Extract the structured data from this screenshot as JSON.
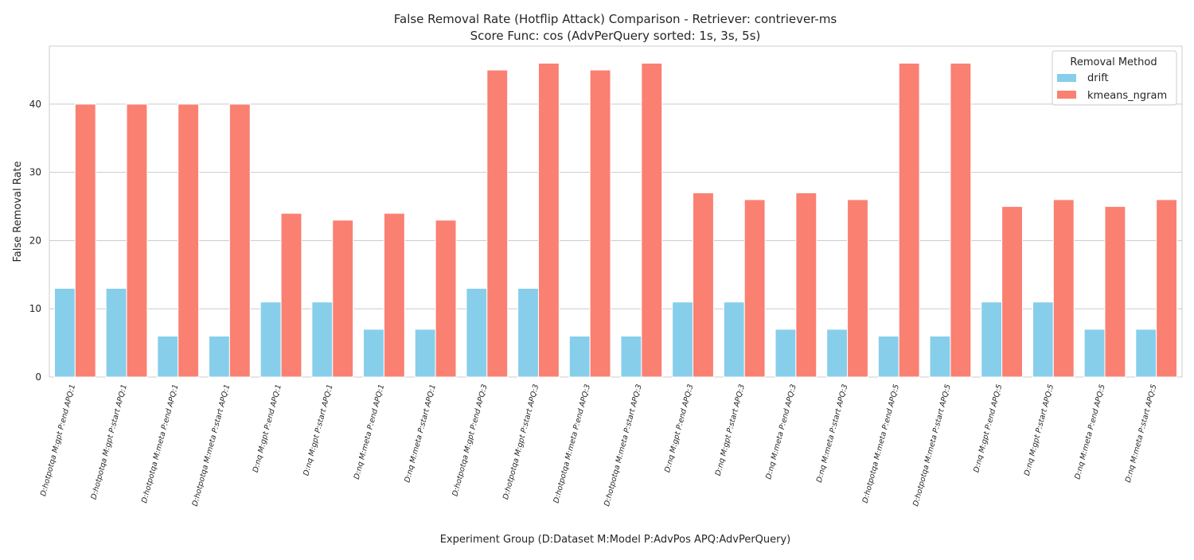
{
  "chart_data": {
    "type": "bar",
    "title_line1": "False Removal Rate (Hotflip Attack) Comparison - Retriever: contriever-ms",
    "title_line2": "Score Func: cos (AdvPerQuery sorted: 1s, 3s, 5s)",
    "xlabel": "Experiment Group (D:Dataset M:Model P:AdvPos APQ:AdvPerQuery)",
    "ylabel": "False Removal Rate",
    "ylim": [
      0,
      48.5
    ],
    "yticks": [
      0,
      10,
      20,
      30,
      40
    ],
    "grid": true,
    "legend": {
      "title": "Removal Method",
      "position": "top-right"
    },
    "categories": [
      "D:hotpotqa M:gpt P:end APQ:1",
      "D:hotpotqa M:gpt P:start APQ:1",
      "D:hotpotqa M:meta P:end APQ:1",
      "D:hotpotqa M:meta P:start APQ:1",
      "D:nq M:gpt P:end APQ:1",
      "D:nq M:gpt P:start APQ:1",
      "D:nq M:meta P:end APQ:1",
      "D:nq M:meta P:start APQ:1",
      "D:hotpotqa M:gpt P:end APQ:3",
      "D:hotpotqa M:gpt P:start APQ:3",
      "D:hotpotqa M:meta P:end APQ:3",
      "D:hotpotqa M:meta P:start APQ:3",
      "D:nq M:gpt P:end APQ:3",
      "D:nq M:gpt P:start APQ:3",
      "D:nq M:meta P:end APQ:3",
      "D:nq M:meta P:start APQ:3",
      "D:hotpotqa M:meta P:end APQ:5",
      "D:hotpotqa M:meta P:start APQ:5",
      "D:nq M:gpt P:end APQ:5",
      "D:nq M:gpt P:start APQ:5",
      "D:nq M:meta P:end APQ:5",
      "D:nq M:meta P:start APQ:5"
    ],
    "series": [
      {
        "name": "drift",
        "color": "#87ceeb",
        "values": [
          13,
          13,
          6,
          6,
          11,
          11,
          7,
          7,
          13,
          13,
          6,
          6,
          11,
          11,
          7,
          7,
          6,
          6,
          11,
          11,
          7,
          7
        ]
      },
      {
        "name": "kmeans_ngram",
        "color": "#fa8072",
        "values": [
          40,
          40,
          40,
          40,
          24,
          23,
          24,
          23,
          45,
          46,
          45,
          46,
          27,
          26,
          27,
          26,
          46,
          46,
          25,
          26,
          25,
          26
        ]
      }
    ]
  }
}
